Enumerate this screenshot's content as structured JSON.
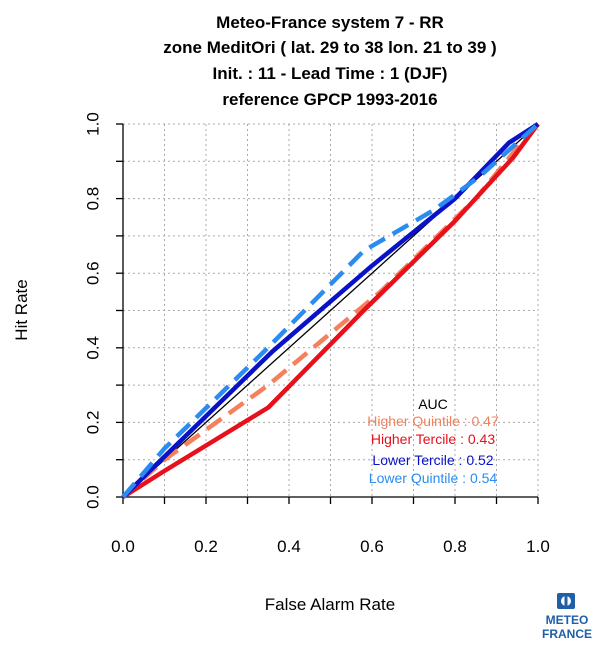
{
  "chart_data": {
    "type": "line",
    "title_lines": [
      "Meteo-France system 7  -  RR",
      "zone MeditOri ( lat. 29 to 38    lon. 21 to 39 )",
      "Init. : 11  - Lead Time : 1 (DJF)",
      "reference GPCP 1993-2016"
    ],
    "xlabel": "False Alarm Rate",
    "ylabel": "Hit Rate",
    "xlim": [
      0,
      1
    ],
    "ylim": [
      0,
      1
    ],
    "x_ticks": [
      "0.0",
      "0.2",
      "0.4",
      "0.6",
      "0.8",
      "1.0"
    ],
    "y_ticks": [
      "0.0",
      "0.2",
      "0.4",
      "0.6",
      "0.8",
      "1.0"
    ],
    "grid": true,
    "legend_title": "AUC",
    "legend_placement": "bottom-right",
    "diagonal": [
      [
        0,
        0
      ],
      [
        1,
        1
      ]
    ],
    "series": [
      {
        "name": "Higher Quintile : 0.47",
        "color": "#f4805c",
        "dash": true,
        "points": [
          [
            0,
            0
          ],
          [
            0.1,
            0.1
          ],
          [
            0.35,
            0.3
          ],
          [
            0.62,
            0.55
          ],
          [
            0.85,
            0.8
          ],
          [
            0.96,
            0.95
          ],
          [
            1,
            1
          ]
        ]
      },
      {
        "name": "Higher Tercile : 0.43",
        "color": "#e8101a",
        "dash": false,
        "points": [
          [
            0,
            0
          ],
          [
            0.1,
            0.07
          ],
          [
            0.35,
            0.24
          ],
          [
            0.58,
            0.5
          ],
          [
            0.8,
            0.74
          ],
          [
            0.94,
            0.91
          ],
          [
            1,
            1
          ]
        ]
      },
      {
        "name": "Lower Tercile : 0.52",
        "color": "#0a12c8",
        "dash": false,
        "points": [
          [
            0,
            0
          ],
          [
            0.12,
            0.13
          ],
          [
            0.36,
            0.39
          ],
          [
            0.6,
            0.62
          ],
          [
            0.8,
            0.8
          ],
          [
            0.93,
            0.95
          ],
          [
            1,
            1
          ]
        ]
      },
      {
        "name": "Lower Quintile : 0.54",
        "color": "#2a8cf0",
        "dash": true,
        "points": [
          [
            0,
            0
          ],
          [
            0.1,
            0.13
          ],
          [
            0.34,
            0.39
          ],
          [
            0.58,
            0.66
          ],
          [
            0.75,
            0.77
          ],
          [
            0.86,
            0.86
          ],
          [
            1,
            1
          ]
        ]
      }
    ]
  },
  "logo": {
    "line1": "METEO",
    "line2": "FRANCE"
  }
}
